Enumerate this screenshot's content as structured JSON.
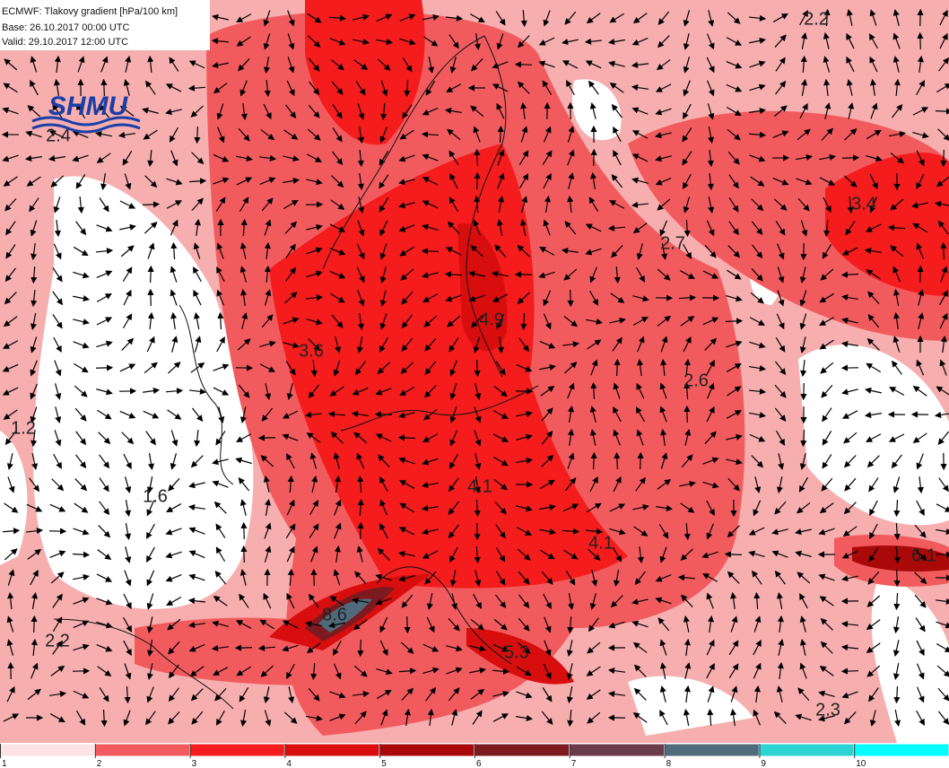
{
  "header": {
    "lines": [
      "ECMWF: Tlakovy gradient [hPa/100 km]",
      "Base: 26.10.2017 00:00 UTC",
      "Valid: 29.10.2017 12:00 UTC"
    ],
    "logo": "SHMU"
  },
  "map": {
    "labels": [
      "2.2",
      "2.4",
      "3.4",
      "2.7",
      "4.9",
      "3.6",
      "2.6",
      "1.2",
      "1.6",
      "4.1",
      "4.1",
      "6.1",
      "8.6",
      "2.2",
      "5.3",
      "2.3"
    ]
  },
  "legend": {
    "ticks": [
      1,
      2,
      3,
      4,
      5,
      6,
      7,
      8,
      9,
      10
    ],
    "colors": [
      "#fde4e4",
      "#f25b5e",
      "#f41c1c",
      "#d80e0e",
      "#a90909",
      "#7d1a1f",
      "#6b3a4b",
      "#4f6b7b",
      "#2ed3d3",
      "#00ffff"
    ]
  }
}
